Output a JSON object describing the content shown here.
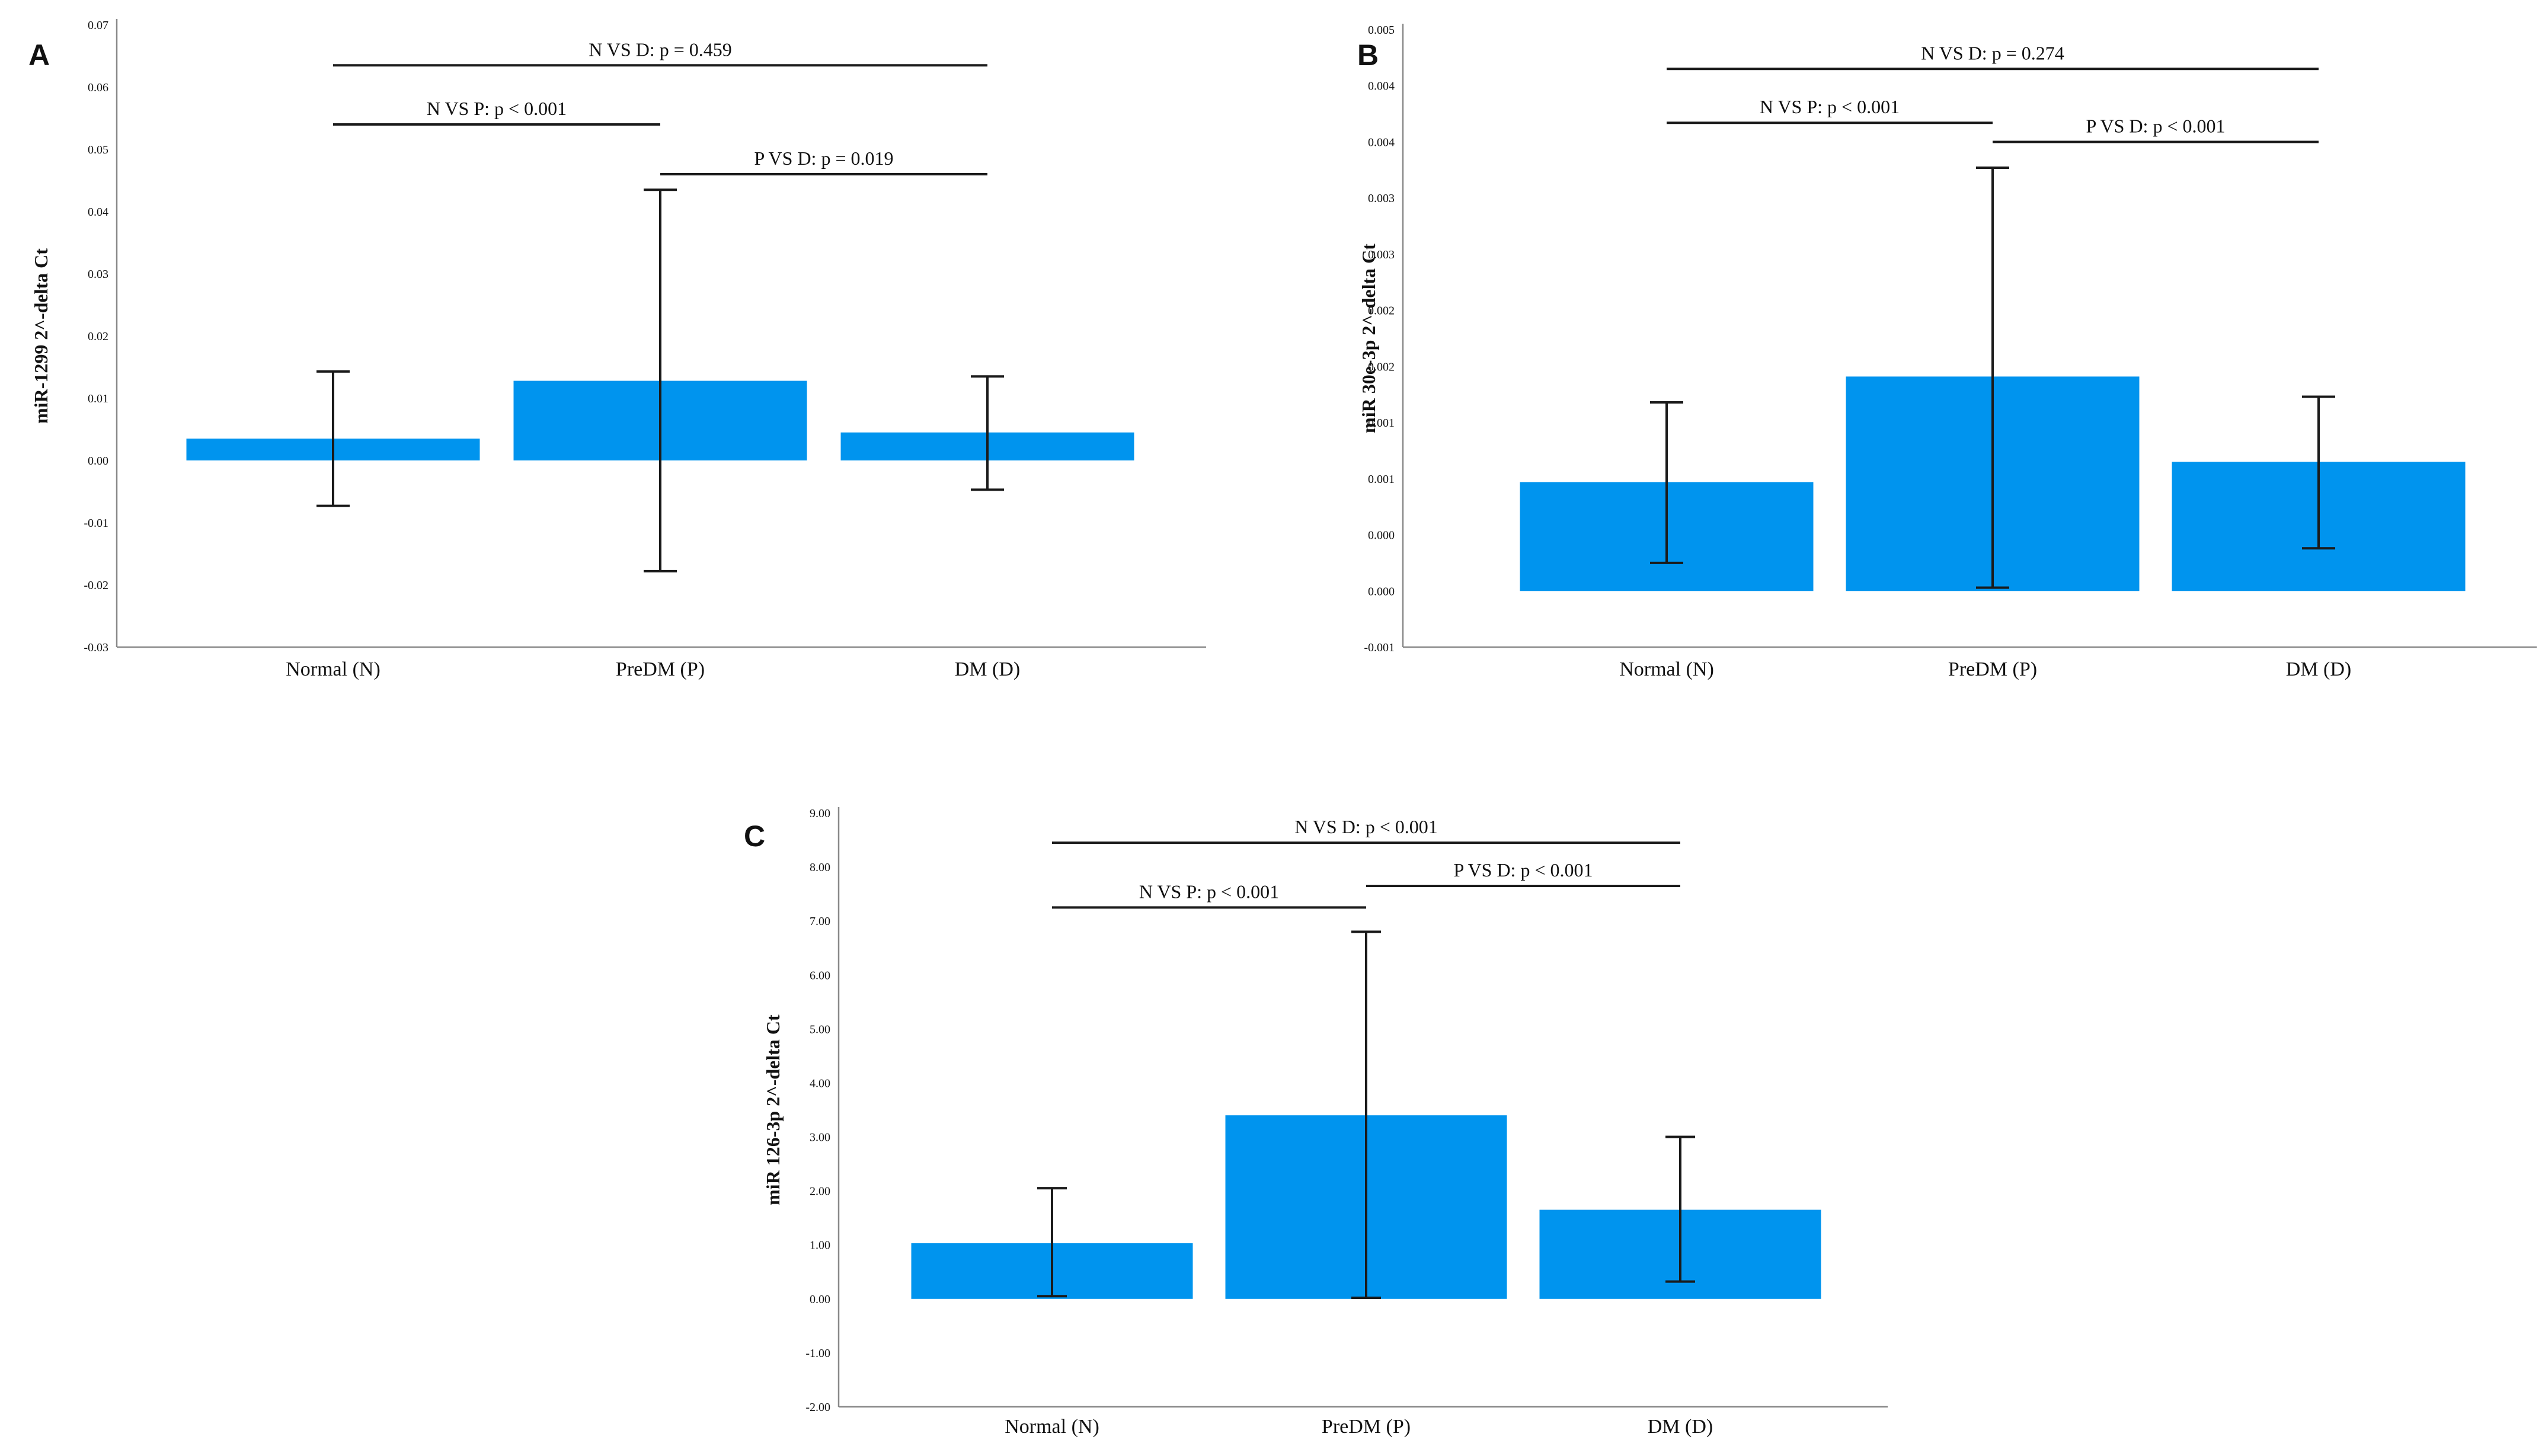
{
  "colors": {
    "bar": "#0094EE",
    "axis": "#888888",
    "ink": "#1a1a1a"
  },
  "chart_data": [
    {
      "panel": "A",
      "type": "bar",
      "ylabel": "miR-1299 2^-delta Ct",
      "categories": [
        "Normal (N)",
        "PreDM (P)",
        "DM (D)"
      ],
      "values": [
        0.0035,
        0.0128,
        0.0045
      ],
      "error_low": [
        -0.0073,
        -0.0178,
        -0.0047
      ],
      "error_high": [
        0.0143,
        0.0435,
        0.0135
      ],
      "ylim": [
        -0.03,
        0.07
      ],
      "yticks": [
        -0.03,
        -0.02,
        -0.01,
        0.0,
        0.01,
        0.02,
        0.03,
        0.04,
        0.05,
        0.06,
        0.07
      ],
      "ytick_labels": [
        "-0.03",
        "-0.02",
        "-0.01",
        "0.00",
        "0.01",
        "0.02",
        "0.03",
        "0.04",
        "0.05",
        "0.06",
        "0.07"
      ],
      "comparisons": [
        {
          "from": 0,
          "to": 2,
          "label": "N VS D: p = 0.459",
          "y": 0.0635
        },
        {
          "from": 0,
          "to": 1,
          "label": "N VS P: p < 0.001",
          "y": 0.054
        },
        {
          "from": 1,
          "to": 2,
          "label": "P VS D: p = 0.019",
          "y": 0.046
        }
      ]
    },
    {
      "panel": "B",
      "type": "bar",
      "ylabel": "miR 30e-3p 2^-delta Ct",
      "categories": [
        "Normal (N)",
        "PreDM (P)",
        "DM (D)"
      ],
      "values": [
        0.00097,
        0.00191,
        0.00115
      ],
      "error_low": [
        0.00025,
        3e-05,
        0.00038
      ],
      "error_high": [
        0.00168,
        0.00377,
        0.00173
      ],
      "ylim": [
        -0.0005,
        0.005
      ],
      "yticks": [
        -0.0005,
        0.0,
        0.0005,
        0.001,
        0.0015,
        0.002,
        0.0025,
        0.003,
        0.0035,
        0.004,
        0.0045,
        0.005
      ],
      "ytick_labels": [
        "-0.001",
        "0.000",
        "0.000",
        "0.001",
        "0.001",
        "0.002",
        "0.002",
        "0.003",
        "0.003",
        "0.004",
        "0.004",
        "0.005"
      ],
      "comparisons": [
        {
          "from": 0,
          "to": 2,
          "label": "N VS D: p = 0.274",
          "y": 0.00465
        },
        {
          "from": 0,
          "to": 1,
          "label": "N VS P: p < 0.001",
          "y": 0.00417
        },
        {
          "from": 1,
          "to": 2,
          "label": "P VS D: p < 0.001",
          "y": 0.004
        }
      ]
    },
    {
      "panel": "C",
      "type": "bar",
      "ylabel": "miR 126-3p 2^-delta Ct",
      "categories": [
        "Normal (N)",
        "PreDM (P)",
        "DM (D)"
      ],
      "values": [
        1.03,
        3.4,
        1.65
      ],
      "error_low": [
        0.05,
        0.02,
        0.32
      ],
      "error_high": [
        2.05,
        6.8,
        3.0
      ],
      "ylim": [
        -2.0,
        9.0
      ],
      "yticks": [
        -2,
        -1,
        0,
        1,
        2,
        3,
        4,
        5,
        6,
        7,
        8,
        9
      ],
      "ytick_labels": [
        "-2.00",
        "-1.00",
        "0.00",
        "1.00",
        "2.00",
        "3.00",
        "4.00",
        "5.00",
        "6.00",
        "7.00",
        "8.00",
        "9.00"
      ],
      "comparisons": [
        {
          "from": 0,
          "to": 2,
          "label": "N VS D: p < 0.001",
          "y": 8.45
        },
        {
          "from": 1,
          "to": 2,
          "label": "P VS D: p < 0.001",
          "y": 7.65
        },
        {
          "from": 0,
          "to": 1,
          "label": "N VS P: p < 0.001",
          "y": 7.25
        }
      ]
    }
  ]
}
